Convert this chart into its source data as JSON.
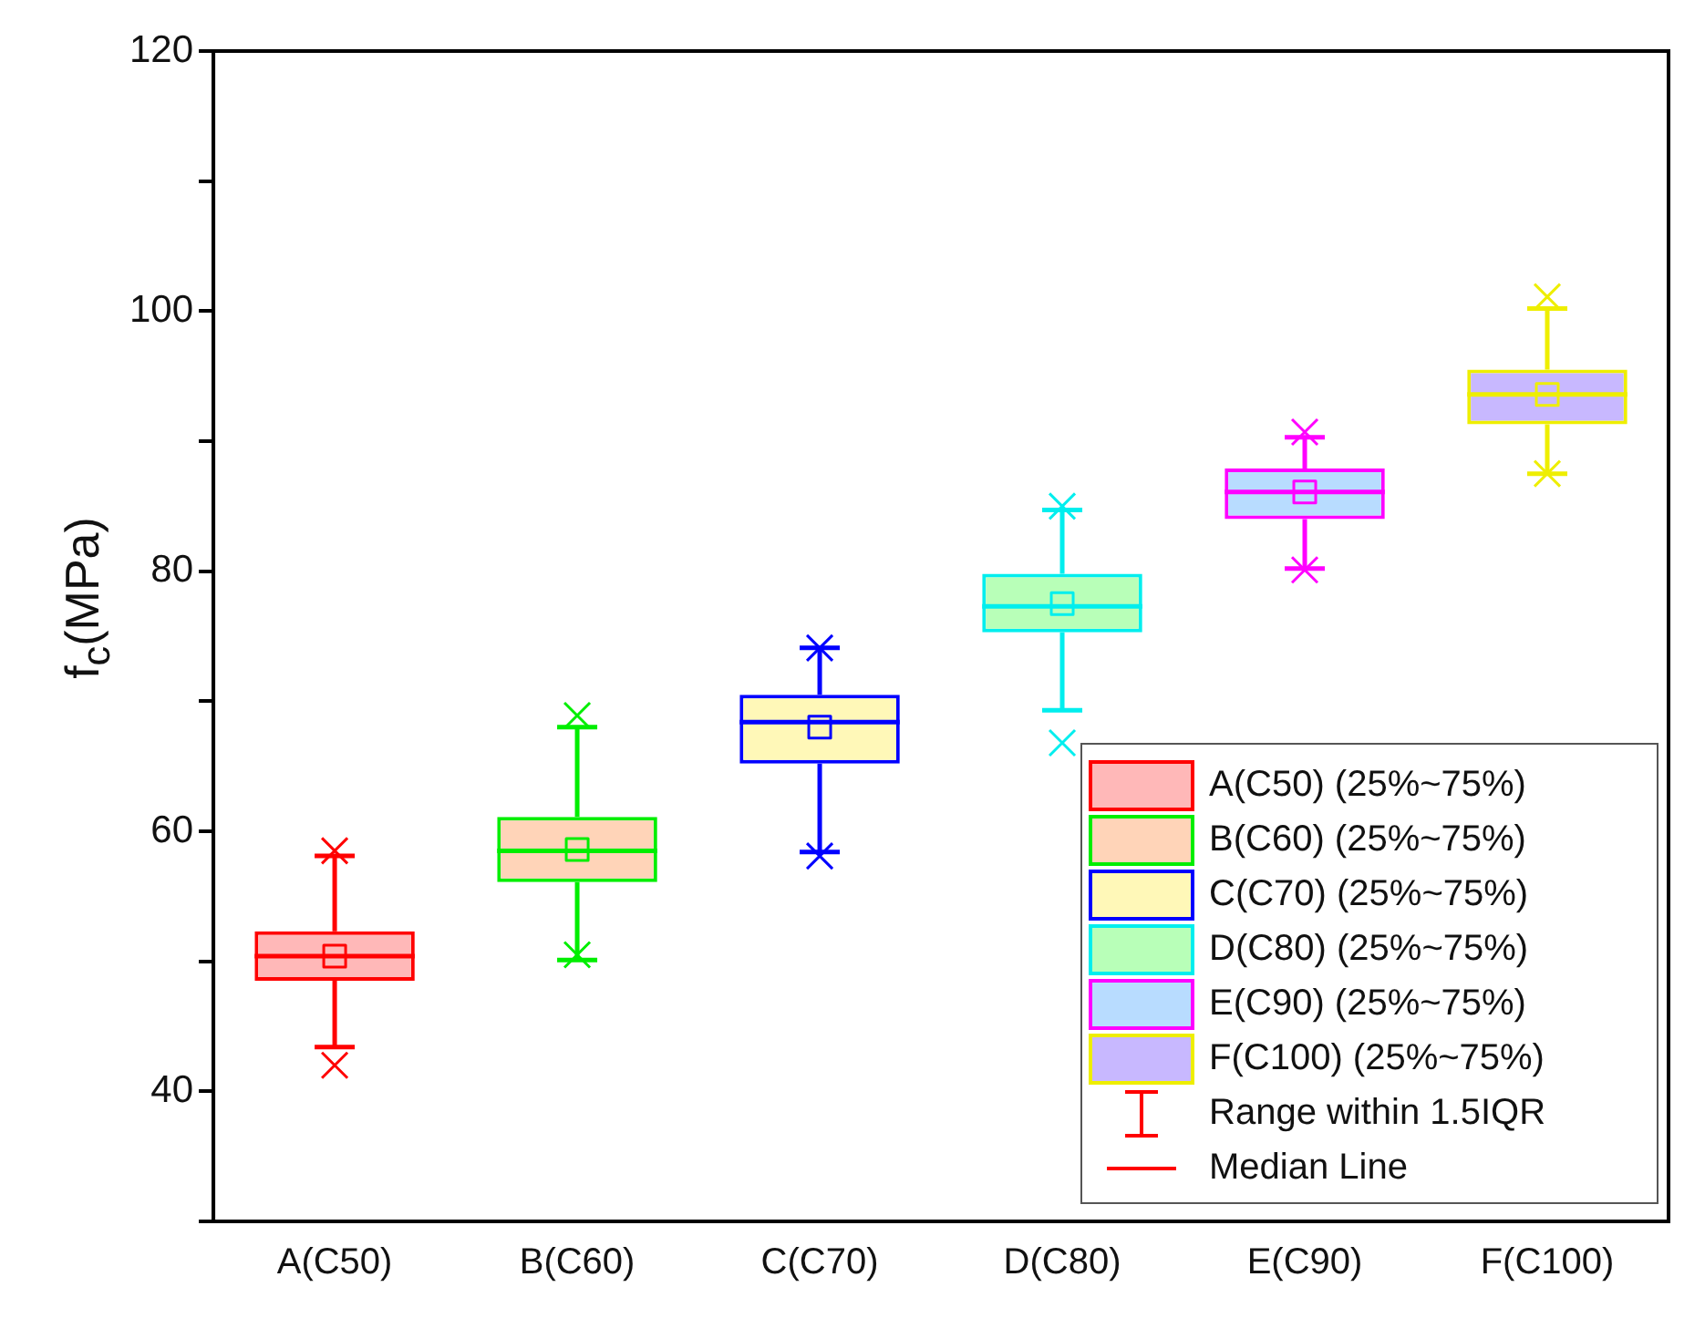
{
  "chart_data": {
    "type": "box",
    "ylabel": "f$_{c}$(MPa)",
    "categories": [
      "A(C50)",
      "B(C60)",
      "C(C70)",
      "D(C80)",
      "E(C90)",
      "F(C100)"
    ],
    "colors": [
      "#ffb8b8",
      "#ffd4b8",
      "#fff8b8",
      "#b8ffb8",
      "#b8dcff",
      "#c8b8ff"
    ],
    "series": [
      {
        "name": "A(C50) (25%~75%)",
        "color": "#ff0000",
        "boxes": [
          {
            "low": 43.4,
            "q1": 48.5,
            "median": 50.4,
            "q3": 52.3,
            "high": 58.1,
            "mean": 50.4,
            "outliers": [
              42.0,
              58.5
            ]
          },
          null,
          null,
          null,
          null,
          null
        ]
      },
      {
        "name": "B(C60) (25%~75%)",
        "color": "#00ee00",
        "boxes": [
          null,
          {
            "low": 50.1,
            "q1": 56.1,
            "median": 58.5,
            "q3": 61.1,
            "high": 68.0,
            "mean": 58.6,
            "outliers": [
              50.5,
              68.9
            ]
          },
          null,
          null,
          null,
          null
        ]
      },
      {
        "name": "C(C70) (25%~75%)",
        "color": "#0000ff",
        "boxes": [
          null,
          null,
          {
            "low": 58.4,
            "q1": 65.2,
            "median": 68.4,
            "q3": 70.5,
            "high": 74.1,
            "mean": 68.0,
            "outliers": [
              58.1,
              74.1
            ]
          },
          null,
          null,
          null
        ]
      },
      {
        "name": "D(C80) (25%~75%)",
        "color": "#00eeee",
        "boxes": [
          null,
          null,
          null,
          {
            "low": 69.3,
            "q1": 75.3,
            "median": 77.3,
            "q3": 79.8,
            "high": 84.7,
            "mean": 77.5,
            "outliers": [
              66.8,
              85.0
            ]
          },
          null,
          null
        ]
      },
      {
        "name": "E(C90) (25%~75%)",
        "color": "#ff00ff",
        "boxes": [
          null,
          null,
          null,
          null,
          {
            "low": 80.2,
            "q1": 84.0,
            "median": 86.1,
            "q3": 87.9,
            "high": 90.3,
            "mean": 86.1,
            "outliers": [
              80.1,
              90.7
            ]
          },
          null
        ]
      },
      {
        "name": "F(C100) (25%~75%)",
        "color": "#eeee00",
        "boxes": [
          null,
          null,
          null,
          null,
          null,
          {
            "low": 87.5,
            "q1": 91.3,
            "median": 93.6,
            "q3": 95.5,
            "high": 100.2,
            "mean": 93.6,
            "outliers": [
              87.5,
              101.1
            ]
          }
        ]
      }
    ],
    "annotations": [
      "Range within 1.5IQR",
      "Median Line"
    ],
    "ylim": [
      30,
      120
    ],
    "yticks": [
      {
        "value": 30,
        "label": null
      },
      40,
      {
        "value": 50,
        "label": null
      },
      60,
      {
        "value": 70,
        "label": null
      },
      80,
      {
        "value": 90,
        "label": null
      },
      100,
      {
        "value": 110,
        "label": null
      },
      120
    ],
    "marker": "cross",
    "legend": "bottom right",
    "grid": false
  }
}
